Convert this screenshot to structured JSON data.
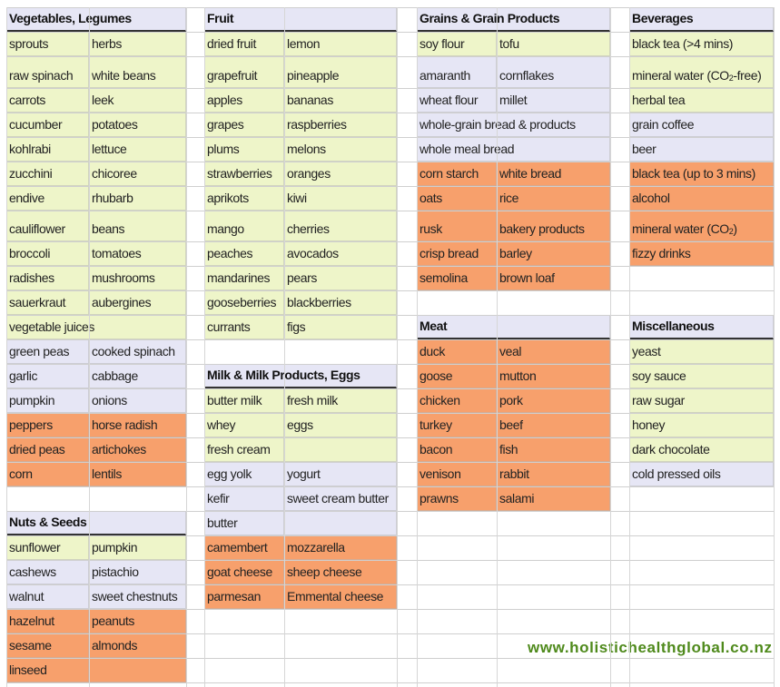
{
  "colors": {
    "green": "#eef5c9",
    "lav": "#e6e6f5",
    "orange": "#f7a06c",
    "url": "#4f8a1c"
  },
  "columns": [
    {
      "rows": [
        {
          "header": "Vegetables, Legumes"
        },
        {
          "a": "sprouts",
          "b": "herbs",
          "c": "green"
        },
        {
          "a": "raw spinach",
          "b": "white beans",
          "c": "green"
        },
        {
          "a": "carrots",
          "b": "leek",
          "c": "green"
        },
        {
          "a": "cucumber",
          "b": "potatoes",
          "c": "green"
        },
        {
          "a": "kohlrabi",
          "b": "lettuce",
          "c": "green"
        },
        {
          "a": "zucchini",
          "b": "chicoree",
          "c": "green"
        },
        {
          "a": "endive",
          "b": "rhubarb",
          "c": "green"
        },
        {
          "a": "cauliflower",
          "b": "beans",
          "c": "green"
        },
        {
          "a": "broccoli",
          "b": "tomatoes",
          "c": "green"
        },
        {
          "a": "radishes",
          "b": "mushrooms",
          "c": "green"
        },
        {
          "a": "sauerkraut",
          "b": "aubergines",
          "c": "green"
        },
        {
          "span": "vegetable juices",
          "c": "green"
        },
        {
          "a": "green peas",
          "b": "cooked spinach",
          "c": "lav"
        },
        {
          "a": "garlic",
          "b": "cabbage",
          "c": "lav"
        },
        {
          "a": "pumpkin",
          "b": "onions",
          "c": "lav"
        },
        {
          "a": "peppers",
          "b": "horse radish",
          "c": "orange"
        },
        {
          "a": "dried peas",
          "b": "artichokes",
          "c": "orange"
        },
        {
          "a": "corn",
          "b": "lentils",
          "c": "orange"
        },
        null,
        {
          "header": "Nuts & Seeds"
        },
        {
          "a": "sunflower",
          "b": "pumpkin",
          "c": "green"
        },
        {
          "a": "cashews",
          "b": "pistachio",
          "c": "lav"
        },
        {
          "a": "walnut",
          "b": "sweet chestnuts",
          "c": "lav"
        },
        {
          "a": "hazelnut",
          "b": "peanuts",
          "c": "orange"
        },
        {
          "a": "sesame",
          "b": "almonds",
          "c": "orange"
        },
        {
          "a": "linseed",
          "b": "",
          "c": "orange"
        }
      ]
    },
    {
      "rows": [
        {
          "header": "Fruit"
        },
        {
          "a": "dried fruit",
          "b": "lemon",
          "c": "green"
        },
        {
          "a": "grapefruit",
          "b": "pineapple",
          "c": "green"
        },
        {
          "a": "apples",
          "b": "bananas",
          "c": "green"
        },
        {
          "a": "grapes",
          "b": "raspberries",
          "c": "green"
        },
        {
          "a": "plums",
          "b": "melons",
          "c": "green"
        },
        {
          "a": "strawberries",
          "b": "oranges",
          "c": "green"
        },
        {
          "a": "aprikots",
          "b": "kiwi",
          "c": "green"
        },
        {
          "a": "mango",
          "b": "cherries",
          "c": "green"
        },
        {
          "a": "peaches",
          "b": "avocados",
          "c": "green"
        },
        {
          "a": "mandarines",
          "b": "pears",
          "c": "green"
        },
        {
          "a": "gooseberries",
          "b": "blackberries",
          "c": "green"
        },
        {
          "a": "currants",
          "b": "figs",
          "c": "green"
        },
        null,
        {
          "header": "Milk & Milk Products, Eggs"
        },
        {
          "a": "butter milk",
          "b": "fresh milk",
          "c": "green"
        },
        {
          "a": "whey",
          "b": "eggs",
          "c": "green"
        },
        {
          "a": "fresh cream",
          "b": "",
          "c": "green"
        },
        {
          "a": "egg yolk",
          "b": "yogurt",
          "c": "lav"
        },
        {
          "a": "kefir",
          "b": "sweet cream butter",
          "c": "lav"
        },
        {
          "a": "butter",
          "b": "",
          "c": "lav"
        },
        {
          "a": "camembert",
          "b": "mozzarella",
          "c": "orange"
        },
        {
          "a": "goat cheese",
          "b": "sheep cheese",
          "c": "orange"
        },
        {
          "a": "parmesan",
          "b": "Emmental cheese",
          "c": "orange"
        }
      ]
    },
    {
      "rows": [
        {
          "header": "Grains & Grain Products"
        },
        {
          "a": "soy flour",
          "b": "tofu",
          "c": "green"
        },
        {
          "a": "amaranth",
          "b": "cornflakes",
          "c": "lav"
        },
        {
          "a": "wheat flour",
          "b": "millet",
          "c": "lav"
        },
        {
          "span": "whole-grain bread & products",
          "c": "lav"
        },
        {
          "span": "whole meal bread",
          "c": "lav"
        },
        {
          "a": "corn starch",
          "b": "white bread",
          "c": "orange"
        },
        {
          "a": "oats",
          "b": "rice",
          "c": "orange"
        },
        {
          "a": "rusk",
          "b": "bakery products",
          "c": "orange"
        },
        {
          "a": "crisp bread",
          "b": "barley",
          "c": "orange"
        },
        {
          "a": "semolina",
          "b": "brown loaf",
          "c": "orange"
        },
        null,
        {
          "header": "Meat"
        },
        {
          "a": "duck",
          "b": "veal",
          "c": "orange"
        },
        {
          "a": "goose",
          "b": "mutton",
          "c": "orange"
        },
        {
          "a": "chicken",
          "b": "pork",
          "c": "orange"
        },
        {
          "a": "turkey",
          "b": "beef",
          "c": "orange"
        },
        {
          "a": "bacon",
          "b": "fish",
          "c": "orange"
        },
        {
          "a": "venison",
          "b": "rabbit",
          "c": "orange"
        },
        {
          "a": "prawns",
          "b": "salami",
          "c": "orange"
        }
      ]
    },
    {
      "rows": [
        {
          "header": "Beverages"
        },
        {
          "span": "black tea (>4 mins)",
          "c": "green"
        },
        {
          "span": "mineral water (CO",
          "sub": "2",
          "after": "-free)",
          "c": "green"
        },
        {
          "span": "herbal tea",
          "c": "green"
        },
        {
          "span": "grain coffee",
          "c": "lav"
        },
        {
          "span": "beer",
          "c": "lav"
        },
        {
          "span": "black tea (up to 3 mins)",
          "c": "orange"
        },
        {
          "span": "alcohol",
          "c": "orange"
        },
        {
          "span": "mineral water (CO",
          "sub": "2",
          "after": ")",
          "c": "orange"
        },
        {
          "span": "fizzy drinks",
          "c": "orange"
        },
        null,
        null,
        {
          "header": "Miscellaneous"
        },
        {
          "span": "yeast",
          "c": "green"
        },
        {
          "span": "soy sauce",
          "c": "green"
        },
        {
          "span": "raw sugar",
          "c": "green"
        },
        {
          "span": "honey",
          "c": "green"
        },
        {
          "span": "dark chocolate",
          "c": "green"
        },
        {
          "span": "cold pressed oils",
          "c": "lav"
        }
      ]
    }
  ],
  "footer": {
    "url": "www.holistichealthglobal.co.nz"
  }
}
